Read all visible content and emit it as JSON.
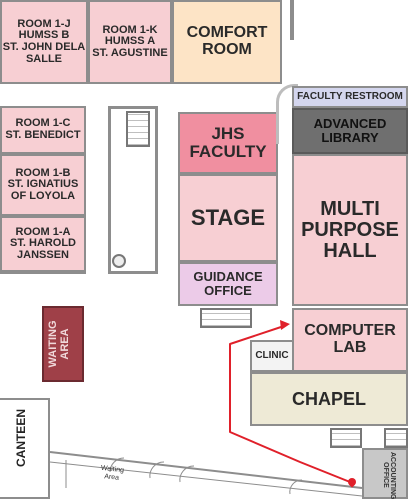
{
  "map": {
    "rooms": {
      "room_1j": "ROOM 1-J\nHUMSS B\nST. JOHN DELA\nSALLE",
      "room_1k": "ROOM 1-K\nHUMSS A\nST. AGUSTINE",
      "comfort_room": "COMFORT\nROOM",
      "room_1c": "ROOM 1-C\nST. BENEDICT",
      "room_1b": "ROOM 1-B\nST. IGNATIUS\nOF LOYOLA",
      "room_1a": "ROOM 1-A\nST. HAROLD\nJANSSEN",
      "jhs_faculty": "JHS\nFACULTY",
      "stage": "STAGE",
      "guidance_office": "GUIDANCE\nOFFICE",
      "faculty_restroom": "FACULTY RESTROOM",
      "advanced_library": "ADVANCED\nLIBRARY",
      "multi_purpose_hall": "MULTI\nPURPOSE\nHALL",
      "computer_lab": "COMPUTER\nLAB",
      "clinic": "CLINIC",
      "chapel": "CHAPEL",
      "waiting_area": "WAITING\nAREA",
      "canteen": "CANTEEN",
      "waiting_area_small": "Waiting\nArea",
      "accounting_office": "ACCOUNTING\nOFFICE"
    },
    "colors": {
      "light_pink": "#f7cfd3",
      "pink": "#f08fa0",
      "peach": "#fde4c6",
      "lavender": "#eccbe8",
      "blue_gray": "#d4d6ee",
      "dark_gray": "#6f6f6f",
      "maroon": "#9f4048",
      "cream": "#eeead6",
      "route_red": "#e0202a"
    }
  }
}
